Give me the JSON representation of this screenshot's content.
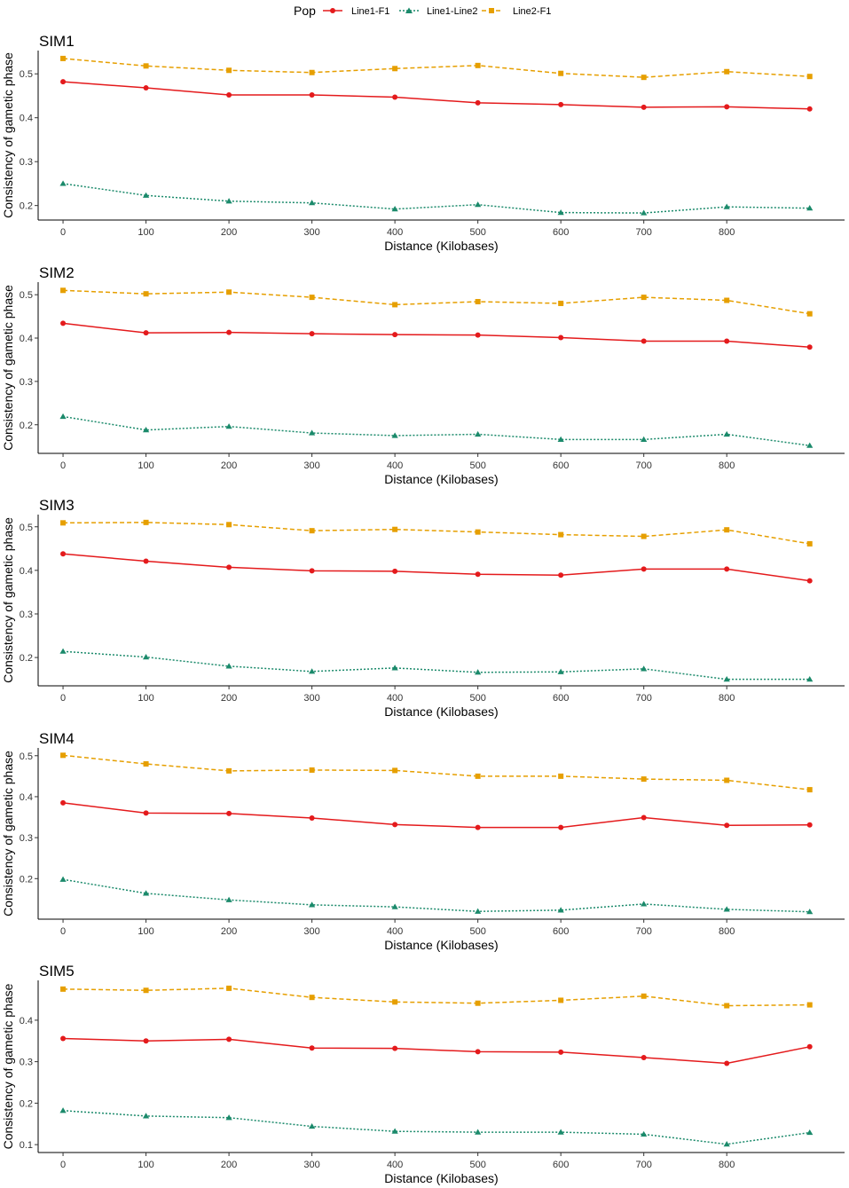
{
  "legend": {
    "title": "Pop",
    "entries": [
      "Line1-F1",
      "Line1-Line2",
      "Line2-F1"
    ]
  },
  "series_styles": [
    {
      "name": "Line1-F1",
      "color": "#e41a1c",
      "marker": "circle",
      "dash": "solid"
    },
    {
      "name": "Line1-Line2",
      "color": "#1b8a6b",
      "marker": "triangle",
      "dash": "dotted"
    },
    {
      "name": "Line2-F1",
      "color": "#e69f00",
      "marker": "square",
      "dash": "dashed"
    }
  ],
  "chart_data": [
    {
      "type": "line",
      "title": "SIM1",
      "xlabel": "Distance (Kilobases)",
      "ylabel": "Consistency of gametic phase",
      "x": [
        0,
        100,
        200,
        300,
        400,
        500,
        600,
        700,
        800,
        900
      ],
      "xticks": [
        0,
        100,
        200,
        300,
        400,
        500,
        600,
        700,
        800
      ],
      "xlim": [
        -30,
        942
      ],
      "yticks": [
        0.2,
        0.3,
        0.4,
        0.5
      ],
      "ytick_labels": [
        "0.2",
        "0.3",
        "0.4",
        "0.5"
      ],
      "ylim": [
        0.167,
        0.553
      ],
      "series": [
        {
          "name": "Line1-F1",
          "values": [
            0.482,
            0.468,
            0.452,
            0.452,
            0.447,
            0.434,
            0.43,
            0.424,
            0.425,
            0.42
          ]
        },
        {
          "name": "Line1-Line2",
          "values": [
            0.25,
            0.223,
            0.21,
            0.206,
            0.192,
            0.202,
            0.184,
            0.183,
            0.197,
            0.194
          ]
        },
        {
          "name": "Line2-F1",
          "values": [
            0.535,
            0.518,
            0.508,
            0.503,
            0.512,
            0.519,
            0.501,
            0.492,
            0.505,
            0.494
          ]
        }
      ]
    },
    {
      "type": "line",
      "title": "SIM2",
      "xlabel": "Distance (Kilobases)",
      "ylabel": "Consistency of gametic phase",
      "x": [
        0,
        100,
        200,
        300,
        400,
        500,
        600,
        700,
        800,
        900
      ],
      "xticks": [
        0,
        100,
        200,
        300,
        400,
        500,
        600,
        700,
        800
      ],
      "xlim": [
        -30,
        942
      ],
      "yticks": [
        0.2,
        0.3,
        0.4,
        0.5
      ],
      "ytick_labels": [
        "0.2",
        "0.3",
        "0.4",
        "0.5"
      ],
      "ylim": [
        0.134,
        0.529
      ],
      "series": [
        {
          "name": "Line1-F1",
          "values": [
            0.434,
            0.412,
            0.413,
            0.41,
            0.408,
            0.407,
            0.401,
            0.393,
            0.393,
            0.379
          ]
        },
        {
          "name": "Line1-Line2",
          "values": [
            0.219,
            0.188,
            0.196,
            0.181,
            0.175,
            0.178,
            0.166,
            0.166,
            0.178,
            0.152
          ]
        },
        {
          "name": "Line2-F1",
          "values": [
            0.51,
            0.502,
            0.506,
            0.494,
            0.477,
            0.484,
            0.48,
            0.494,
            0.487,
            0.456
          ]
        }
      ]
    },
    {
      "type": "line",
      "title": "SIM3",
      "xlabel": "Distance (Kilobases)",
      "ylabel": "Consistency of gametic phase",
      "x": [
        0,
        100,
        200,
        300,
        400,
        500,
        600,
        700,
        800,
        900
      ],
      "xticks": [
        0,
        100,
        200,
        300,
        400,
        500,
        600,
        700,
        800
      ],
      "xlim": [
        -30,
        942
      ],
      "yticks": [
        0.2,
        0.3,
        0.4,
        0.5
      ],
      "ytick_labels": [
        "0.2",
        "0.3",
        "0.4",
        "0.5"
      ],
      "ylim": [
        0.135,
        0.528
      ],
      "series": [
        {
          "name": "Line1-F1",
          "values": [
            0.438,
            0.421,
            0.407,
            0.399,
            0.398,
            0.391,
            0.389,
            0.403,
            0.403,
            0.376
          ]
        },
        {
          "name": "Line1-Line2",
          "values": [
            0.214,
            0.201,
            0.18,
            0.168,
            0.176,
            0.166,
            0.167,
            0.174,
            0.15,
            0.15
          ]
        },
        {
          "name": "Line2-F1",
          "values": [
            0.509,
            0.51,
            0.505,
            0.491,
            0.494,
            0.488,
            0.482,
            0.478,
            0.493,
            0.461
          ]
        }
      ]
    },
    {
      "type": "line",
      "title": "SIM4",
      "xlabel": "Distance (Kilobases)",
      "ylabel": "Consistency of gametic phase",
      "x": [
        0,
        100,
        200,
        300,
        400,
        500,
        600,
        700,
        800,
        900
      ],
      "xticks": [
        0,
        100,
        200,
        300,
        400,
        500,
        600,
        700,
        800
      ],
      "xlim": [
        -30,
        942
      ],
      "yticks": [
        0.2,
        0.3,
        0.4,
        0.5
      ],
      "ytick_labels": [
        "0.2",
        "0.3",
        "0.4",
        "0.5"
      ],
      "ylim": [
        0.101,
        0.519
      ],
      "series": [
        {
          "name": "Line1-F1",
          "values": [
            0.385,
            0.36,
            0.359,
            0.348,
            0.332,
            0.325,
            0.325,
            0.349,
            0.33,
            0.331
          ]
        },
        {
          "name": "Line1-Line2",
          "values": [
            0.198,
            0.164,
            0.148,
            0.136,
            0.131,
            0.12,
            0.123,
            0.138,
            0.125,
            0.119
          ]
        },
        {
          "name": "Line2-F1",
          "values": [
            0.501,
            0.48,
            0.463,
            0.465,
            0.464,
            0.45,
            0.45,
            0.443,
            0.44,
            0.417
          ]
        }
      ]
    },
    {
      "type": "line",
      "title": "SIM5",
      "xlabel": "Distance (Kilobases)",
      "ylabel": "Consistency of gametic phase",
      "x": [
        0,
        100,
        200,
        300,
        400,
        500,
        600,
        700,
        800,
        900
      ],
      "xticks": [
        0,
        100,
        200,
        300,
        400,
        500,
        600,
        700,
        800
      ],
      "xlim": [
        -30,
        942
      ],
      "yticks": [
        0.1,
        0.2,
        0.3,
        0.4
      ],
      "ytick_labels": [
        "0.1",
        "0.2",
        "0.3",
        "0.4"
      ],
      "ylim": [
        0.081,
        0.496
      ],
      "series": [
        {
          "name": "Line1-F1",
          "values": [
            0.356,
            0.35,
            0.354,
            0.333,
            0.332,
            0.324,
            0.323,
            0.31,
            0.296,
            0.336
          ]
        },
        {
          "name": "Line1-Line2",
          "values": [
            0.182,
            0.169,
            0.165,
            0.144,
            0.132,
            0.13,
            0.13,
            0.125,
            0.101,
            0.129
          ]
        },
        {
          "name": "Line2-F1",
          "values": [
            0.475,
            0.472,
            0.477,
            0.455,
            0.444,
            0.441,
            0.448,
            0.458,
            0.435,
            0.437
          ]
        }
      ]
    }
  ]
}
